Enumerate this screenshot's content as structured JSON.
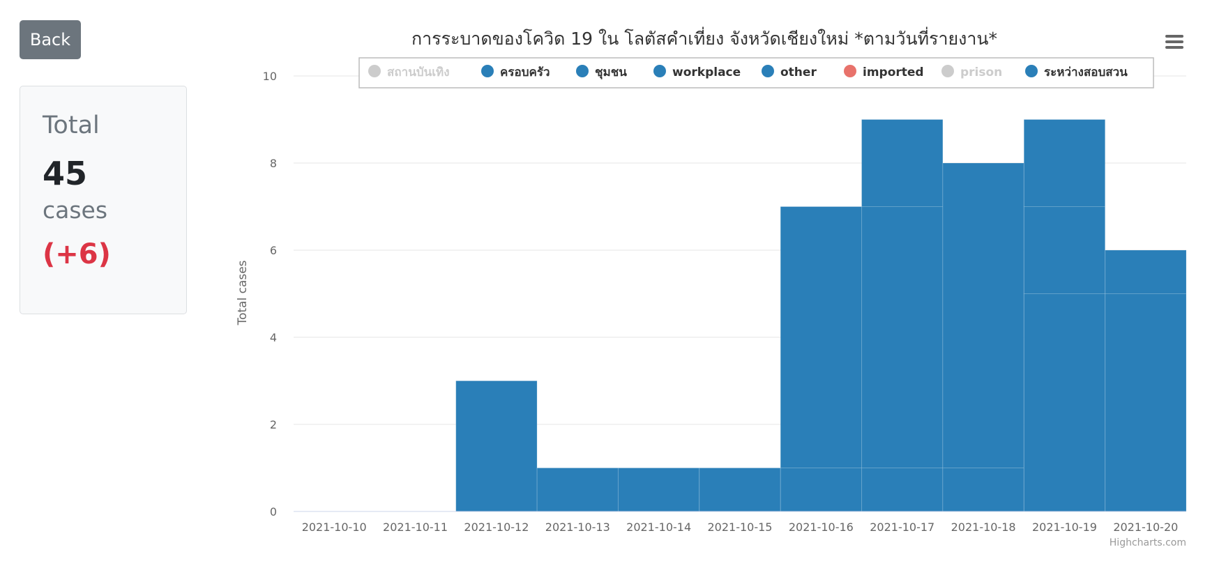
{
  "back_label": "Back",
  "summary": {
    "title": "Total",
    "total": "45",
    "unit": "cases",
    "delta": "(+6)"
  },
  "chart_data": {
    "type": "bar",
    "stacked": true,
    "title": "การระบาดของโควิด 19 ใน โลตัสคำเที่ยง จังหวัดเชียงใหม่ *ตามวันที่รายงาน*",
    "xlabel": "",
    "ylabel": "Total cases",
    "ylim": [
      0,
      10
    ],
    "yticks": [
      0,
      2,
      4,
      6,
      8,
      10
    ],
    "grid": true,
    "legend_position": "top",
    "credits": "Highcharts.com",
    "categories": [
      "2021-10-10",
      "2021-10-11",
      "2021-10-12",
      "2021-10-13",
      "2021-10-14",
      "2021-10-15",
      "2021-10-16",
      "2021-10-17",
      "2021-10-18",
      "2021-10-19",
      "2021-10-20"
    ],
    "series": [
      {
        "name": "สถานบันเทิง",
        "color": "#cccccc",
        "visible": false,
        "values": [
          0,
          0,
          0,
          0,
          0,
          0,
          0,
          0,
          0,
          0,
          0
        ]
      },
      {
        "name": "ครอบครัว",
        "color": "#2a7fb8",
        "visible": true,
        "values": [
          0,
          0,
          0,
          0,
          0,
          0,
          0,
          0,
          0,
          0,
          0
        ]
      },
      {
        "name": "ชุมชน",
        "color": "#2a7fb8",
        "visible": true,
        "values": [
          0,
          0,
          0,
          0,
          0,
          0,
          0,
          0,
          0,
          0,
          0
        ]
      },
      {
        "name": "workplace",
        "color": "#2a7fb8",
        "visible": true,
        "values": [
          0,
          0,
          3,
          1,
          1,
          1,
          1,
          1,
          1,
          5,
          5
        ]
      },
      {
        "name": "other",
        "color": "#2a7fb8",
        "visible": true,
        "values": [
          0,
          0,
          0,
          0,
          0,
          0,
          6,
          6,
          7,
          2,
          1
        ]
      },
      {
        "name": "imported",
        "color": "#e8726b",
        "visible": true,
        "values": [
          0,
          0,
          0,
          0,
          0,
          0,
          0,
          0,
          0,
          0,
          0
        ]
      },
      {
        "name": "prison",
        "color": "#cccccc",
        "visible": false,
        "values": [
          0,
          0,
          0,
          0,
          0,
          0,
          0,
          0,
          0,
          0,
          0
        ]
      },
      {
        "name": "ระหว่างสอบสวน",
        "color": "#2a7fb8",
        "visible": true,
        "values": [
          0,
          0,
          0,
          0,
          0,
          0,
          0,
          2,
          0,
          2,
          0
        ]
      }
    ]
  }
}
